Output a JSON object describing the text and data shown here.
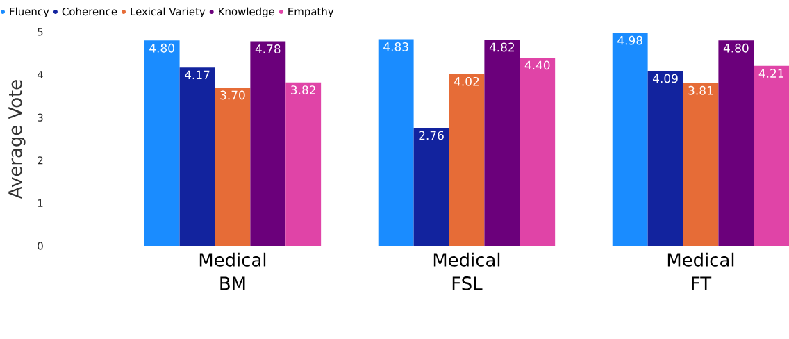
{
  "chart_data": {
    "type": "bar",
    "ylabel": "Average Vote",
    "categories": [
      "Medical BM",
      "Medical FSL",
      "Medical FT"
    ],
    "series": [
      {
        "name": "Fluency",
        "color": "#1a8cff",
        "values": [
          4.8,
          4.83,
          4.98
        ],
        "value_labels": [
          "4.80",
          "4.83",
          "4.98"
        ]
      },
      {
        "name": "Coherence",
        "color": "#12239e",
        "values": [
          4.17,
          2.76,
          4.09
        ],
        "value_labels": [
          "4.17",
          "2.76",
          "4.09"
        ]
      },
      {
        "name": "Lexical Variety",
        "color": "#e66c37",
        "values": [
          3.7,
          4.02,
          3.81
        ],
        "value_labels": [
          "3.70",
          "4.02",
          "3.81"
        ]
      },
      {
        "name": "Knowledge",
        "color": "#6b007b",
        "values": [
          4.78,
          4.82,
          4.8
        ],
        "value_labels": [
          "4.78",
          "4.82",
          "4.80"
        ]
      },
      {
        "name": "Empathy",
        "color": "#e044a7",
        "values": [
          3.82,
          4.4,
          4.21
        ],
        "value_labels": [
          "3.82",
          "4.40",
          "4.21"
        ]
      }
    ],
    "ylim": [
      0,
      5
    ],
    "yticks": [
      0,
      1,
      2,
      3,
      4,
      5
    ],
    "legend": "top left",
    "marker": "circle"
  }
}
